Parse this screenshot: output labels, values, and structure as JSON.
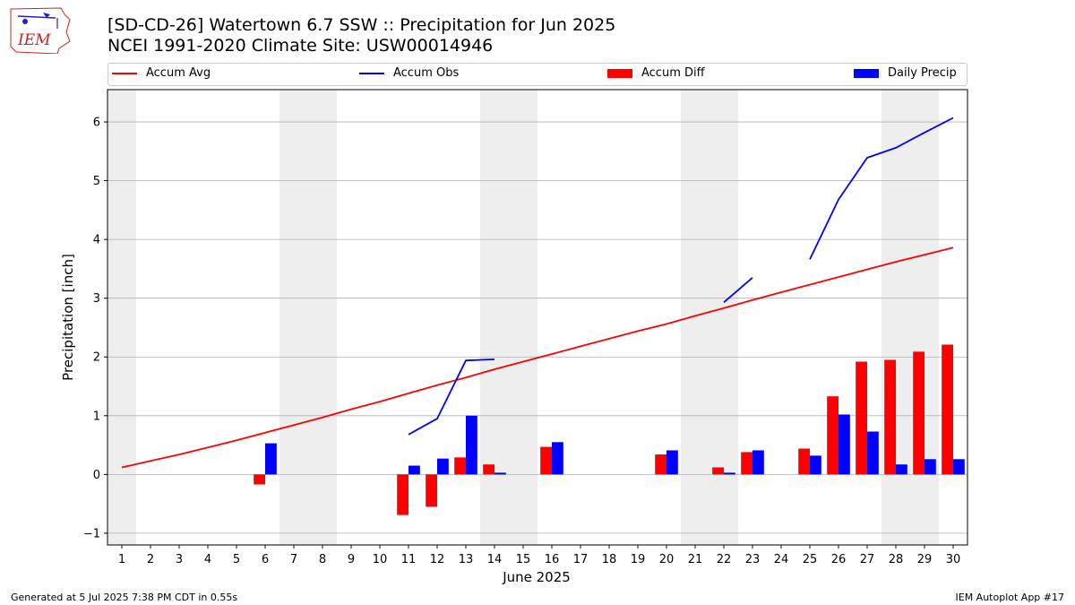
{
  "header": {
    "title": "[SD-CD-26] Watertown 6.7 SSW :: Precipitation for Jun 2025",
    "subtitle": "NCEI 1991-2020 Climate Site: USW00014946",
    "logo_text": "IEM"
  },
  "footer": {
    "generated": "Generated at 5 Jul 2025 7:38 PM CDT in 0.55s",
    "app": "IEM Autoplot App #17"
  },
  "colors": {
    "avg": "#ff0000",
    "obs": "#0000ff",
    "diff": "#ff0000",
    "daily": "#0000ff",
    "weekend_band": "#eeeeee",
    "grid": "#b0b0b0"
  },
  "chart_data": {
    "type": "bar",
    "xlabel": "June 2025",
    "ylabel": "Precipitation [inch]",
    "xlim": [
      0.5,
      30.5
    ],
    "ylim": [
      -1.2,
      6.55
    ],
    "yticks": [
      -1,
      0,
      1,
      2,
      3,
      4,
      5,
      6
    ],
    "grid": "y",
    "legend_position": "top",
    "categories": [
      "1",
      "2",
      "3",
      "4",
      "5",
      "6",
      "7",
      "8",
      "9",
      "10",
      "11",
      "12",
      "13",
      "14",
      "15",
      "16",
      "17",
      "18",
      "19",
      "20",
      "21",
      "22",
      "23",
      "24",
      "25",
      "26",
      "27",
      "28",
      "29",
      "30"
    ],
    "weekend_days": [
      1,
      7,
      8,
      14,
      15,
      21,
      22,
      28,
      29
    ],
    "series": [
      {
        "name": "Accum Avg",
        "type": "line",
        "color": "#ff0000",
        "values": [
          0.12,
          0.23,
          0.34,
          0.46,
          0.58,
          0.71,
          0.84,
          0.97,
          1.11,
          1.24,
          1.38,
          1.52,
          1.65,
          1.79,
          1.92,
          2.05,
          2.18,
          2.31,
          2.44,
          2.56,
          2.7,
          2.83,
          2.97,
          3.1,
          3.23,
          3.36,
          3.49,
          3.62,
          3.74,
          3.86
        ]
      },
      {
        "name": "Accum Obs",
        "type": "line",
        "color": "#0000ff",
        "values": [
          null,
          null,
          null,
          null,
          null,
          null,
          null,
          null,
          null,
          null,
          0.68,
          0.95,
          1.94,
          1.96,
          null,
          null,
          null,
          null,
          null,
          null,
          null,
          2.93,
          3.35,
          null,
          3.66,
          4.68,
          5.39,
          5.56,
          5.82,
          6.07
        ]
      },
      {
        "name": "Accum Diff",
        "type": "bar",
        "color": "#ff0000",
        "values": [
          0,
          0,
          0,
          0,
          0,
          -0.17,
          0,
          0,
          0,
          0,
          -0.69,
          -0.55,
          0.29,
          0.17,
          0,
          0.47,
          0,
          0,
          0,
          0.34,
          0,
          0.12,
          0.38,
          0,
          0.44,
          1.33,
          1.92,
          1.95,
          2.09,
          2.21
        ]
      },
      {
        "name": "Daily Precip",
        "type": "bar",
        "color": "#0000ff",
        "values": [
          0,
          0,
          0,
          0,
          0,
          0.53,
          0,
          0,
          0,
          0,
          0.15,
          0.27,
          1.0,
          0.03,
          0,
          0.55,
          0,
          0,
          0,
          0.41,
          0,
          0.03,
          0.41,
          0,
          0.32,
          1.02,
          0.73,
          0.17,
          0.26,
          0.26
        ]
      }
    ]
  }
}
